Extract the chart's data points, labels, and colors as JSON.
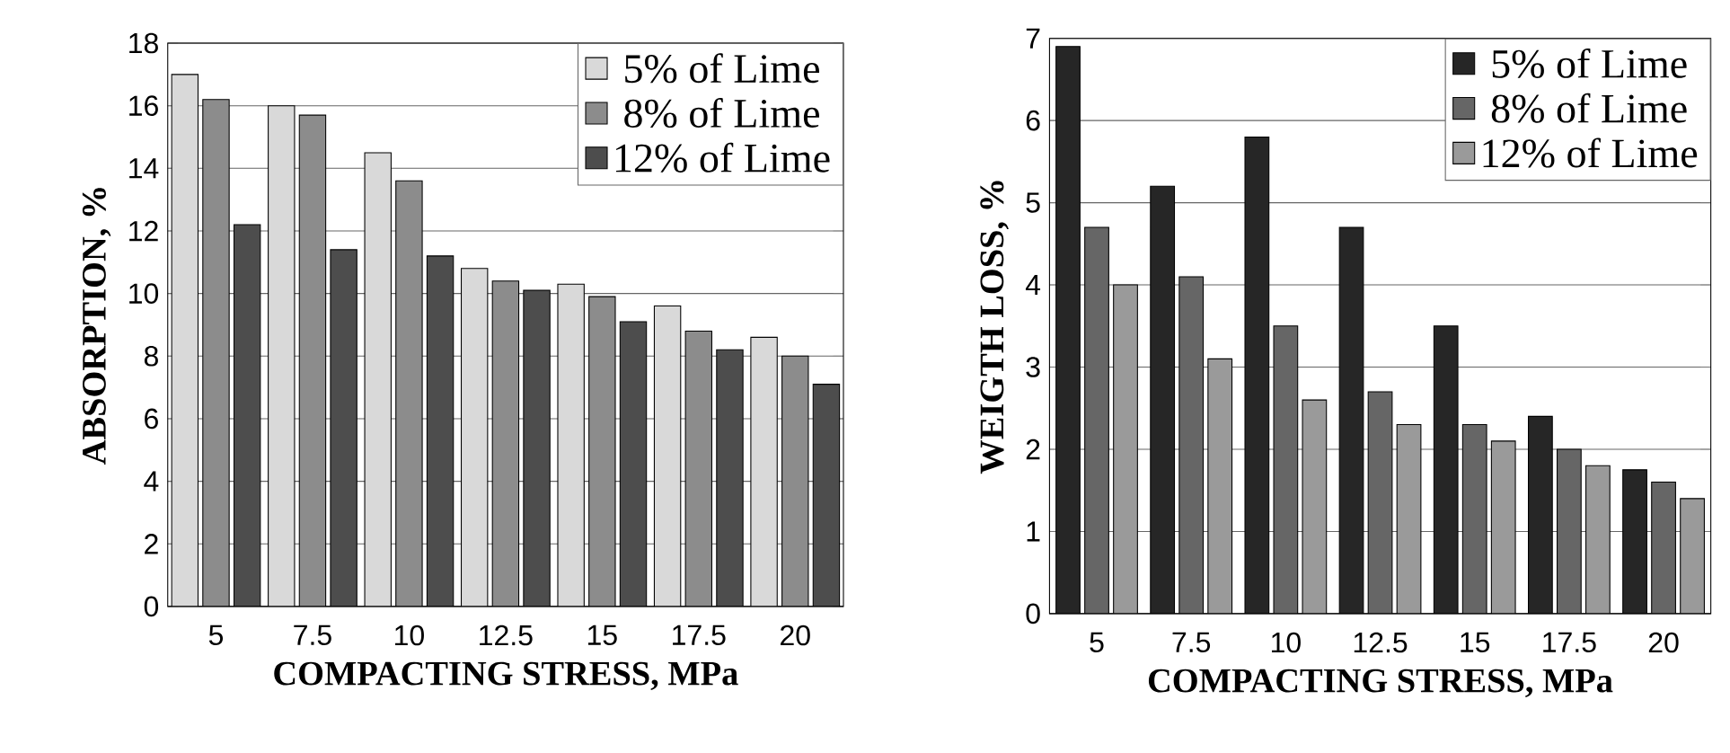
{
  "chart_data": [
    {
      "type": "bar",
      "xlabel": "COMPACTING STRESS, MPa",
      "ylabel": "ABSORPTION, %",
      "categories": [
        "5",
        "7.5",
        "10",
        "12.5",
        "15",
        "17.5",
        "20"
      ],
      "series": [
        {
          "name": "5% of Lime",
          "color": "#d9d9d9",
          "values": [
            17,
            16,
            14.5,
            10.8,
            10.3,
            9.6,
            8.6
          ]
        },
        {
          "name": "8% of Lime",
          "color": "#8c8c8c",
          "values": [
            16.2,
            15.7,
            13.6,
            10.4,
            9.9,
            8.8,
            8.0
          ]
        },
        {
          "name": "12% of Lime",
          "color": "#4d4d4d",
          "values": [
            12.2,
            11.4,
            11.2,
            10.1,
            9.1,
            8.2,
            7.1
          ]
        }
      ],
      "ylim": [
        0,
        18
      ],
      "yticks": [
        0,
        2,
        4,
        6,
        8,
        10,
        12,
        14,
        16,
        18
      ],
      "grid": "y",
      "legend": "top right"
    },
    {
      "type": "bar",
      "xlabel": "COMPACTING STRESS, MPa",
      "ylabel": "WEIGTH LOSS, %",
      "categories": [
        "5",
        "7.5",
        "10",
        "12.5",
        "15",
        "17.5",
        "20"
      ],
      "series": [
        {
          "name": "5% of Lime",
          "color": "#262626",
          "values": [
            6.9,
            5.2,
            5.8,
            4.7,
            3.5,
            2.4,
            1.75
          ]
        },
        {
          "name": "8% of Lime",
          "color": "#666666",
          "values": [
            4.7,
            4.1,
            3.5,
            2.7,
            2.3,
            2.0,
            1.6
          ]
        },
        {
          "name": "12% of Lime",
          "color": "#9a9a9a",
          "values": [
            4.0,
            3.1,
            2.6,
            2.3,
            2.1,
            1.8,
            1.4
          ]
        }
      ],
      "ylim": [
        0,
        7
      ],
      "yticks": [
        0,
        1,
        2,
        3,
        4,
        5,
        6,
        7
      ],
      "grid": "y",
      "legend": "top right"
    }
  ]
}
